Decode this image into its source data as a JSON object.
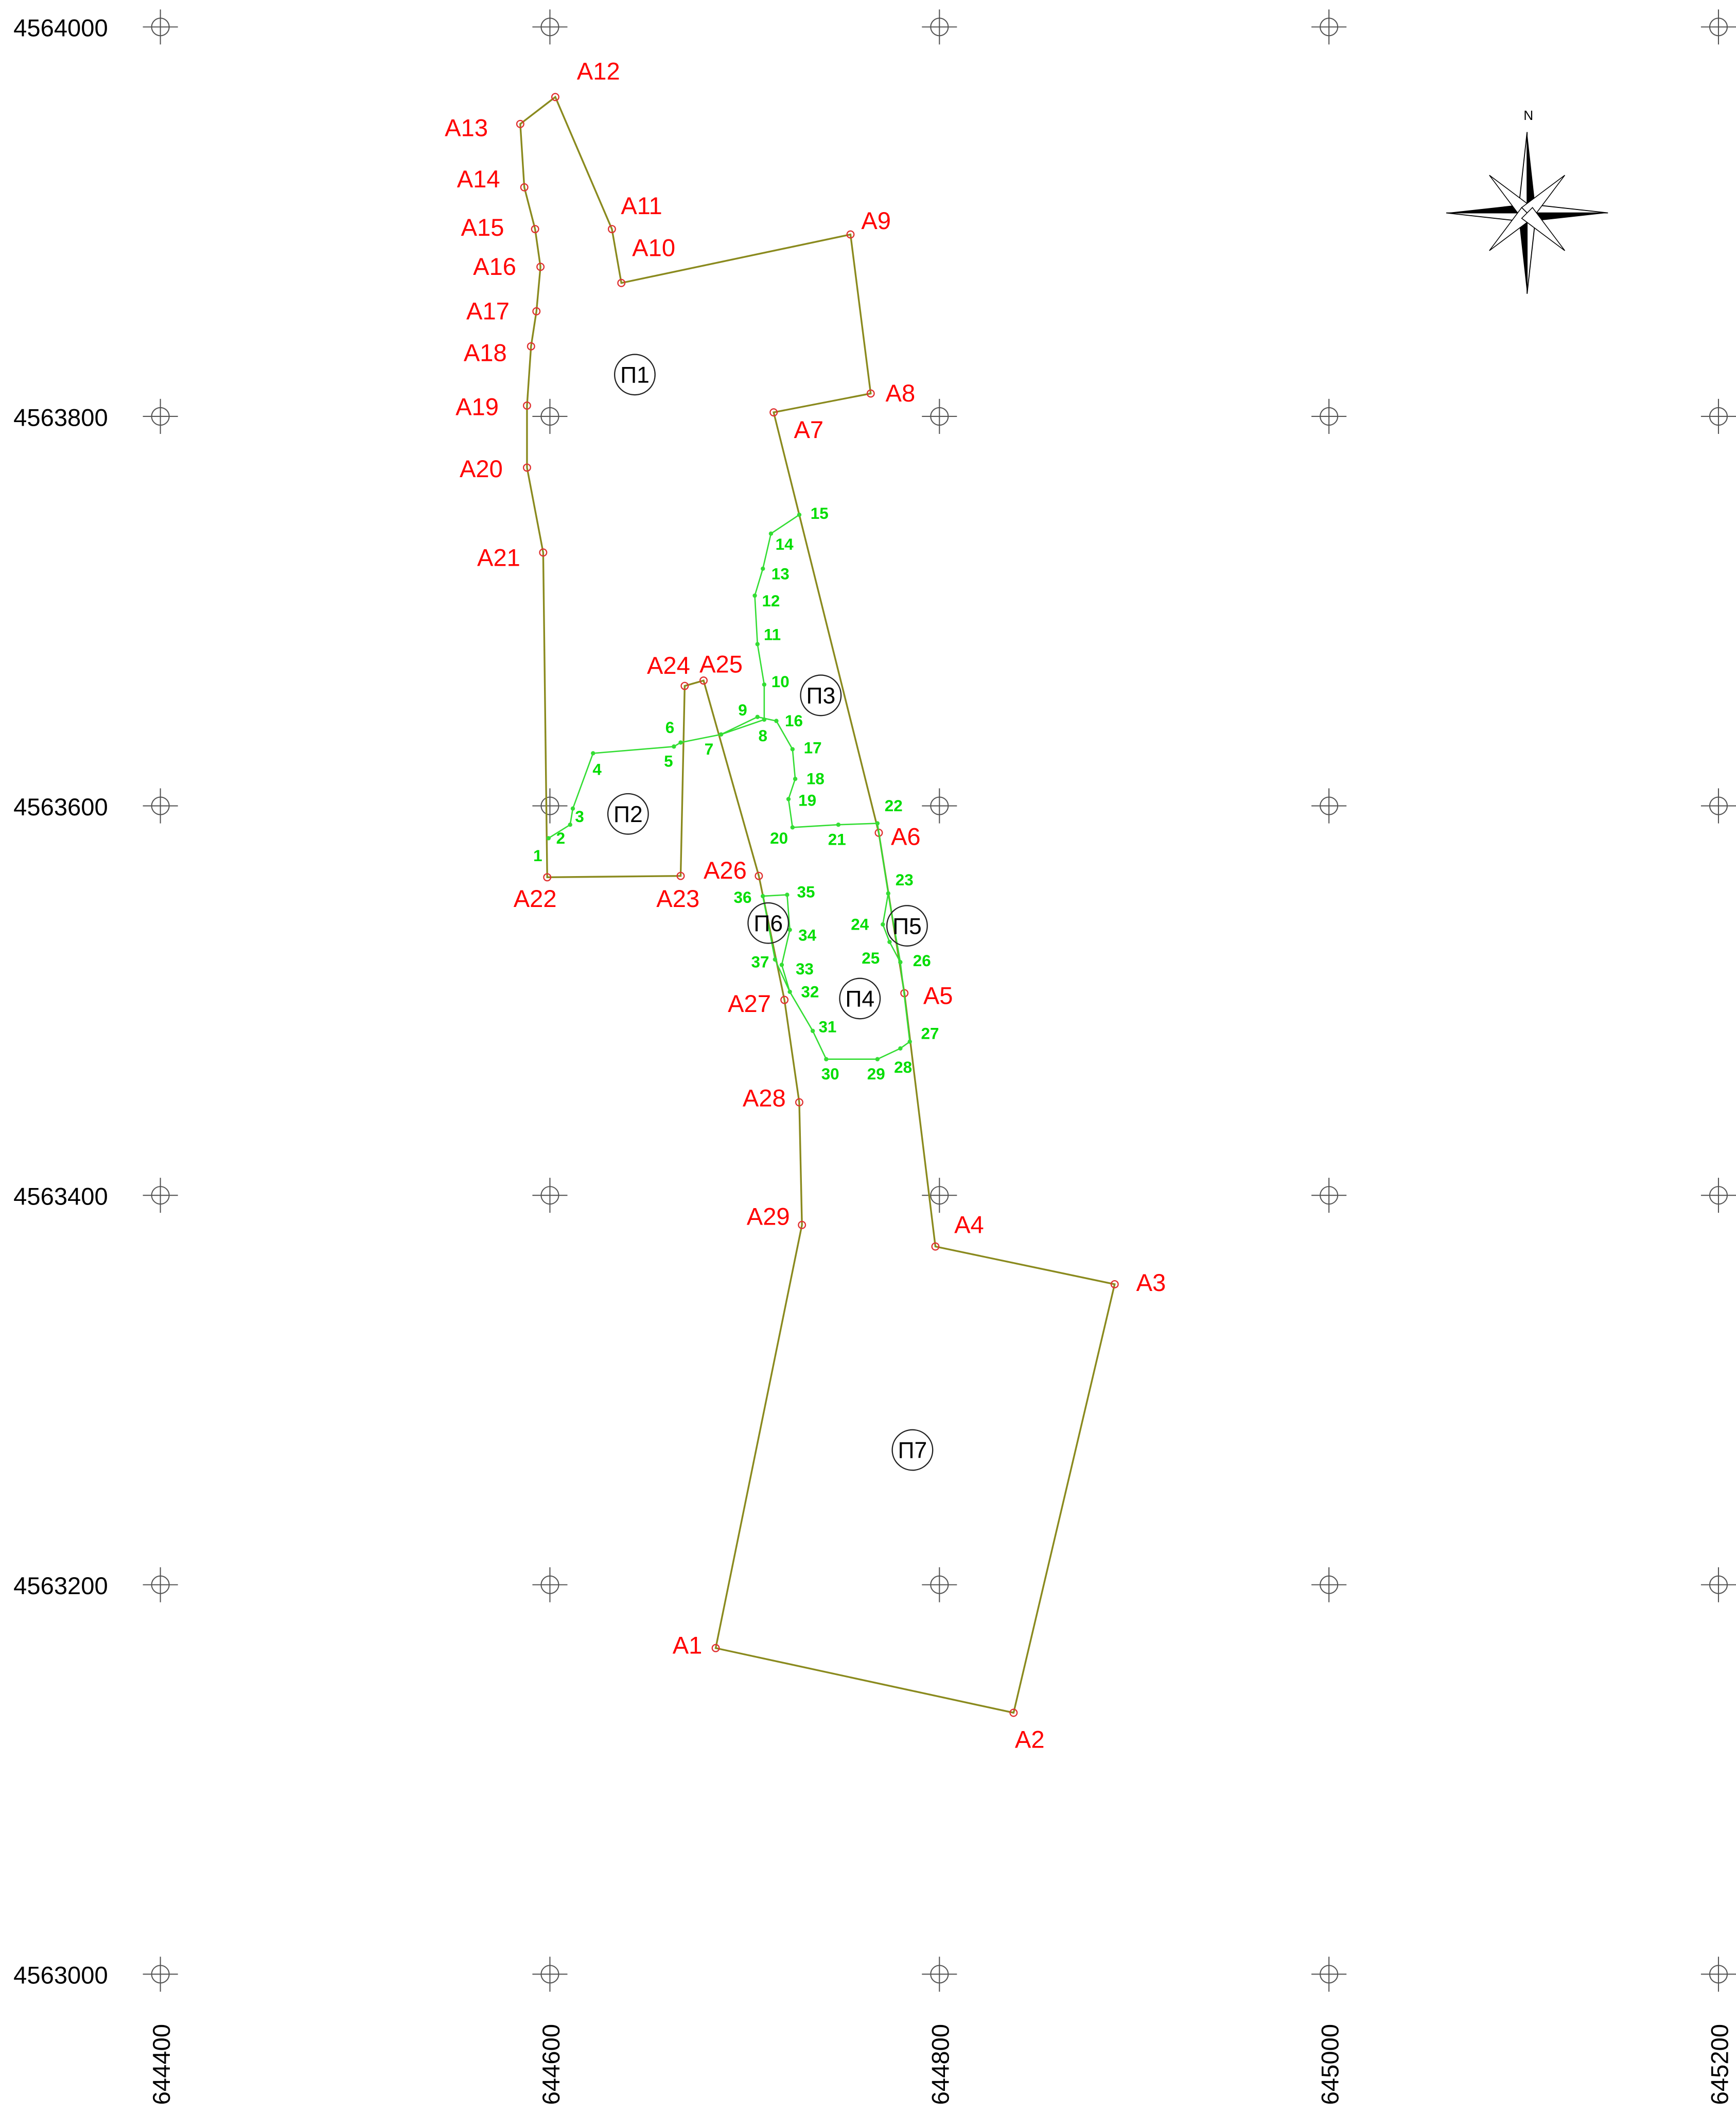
{
  "map": {
    "x_ticks": [
      644400,
      644600,
      644800,
      645000,
      645200
    ],
    "y_ticks": [
      4564000,
      4563800,
      4563600,
      4563400,
      4563200,
      4563000
    ],
    "north_label": "N",
    "boundary_points": [
      "A1",
      "A2",
      "A3",
      "A4",
      "A5",
      "A6",
      "A7",
      "A8",
      "A9",
      "A10",
      "A11",
      "A12",
      "A13",
      "A14",
      "A15",
      "A16",
      "A17",
      "A18",
      "A19",
      "A20",
      "A21",
      "A22",
      "A23",
      "A24",
      "A25",
      "A26",
      "A27",
      "A28",
      "A29"
    ],
    "parcel_points": [
      "1",
      "2",
      "3",
      "4",
      "5",
      "6",
      "7",
      "8",
      "9",
      "10",
      "11",
      "12",
      "13",
      "14",
      "15",
      "16",
      "17",
      "18",
      "19",
      "20",
      "21",
      "22",
      "23",
      "24",
      "25",
      "26",
      "27",
      "28",
      "29",
      "30",
      "31",
      "32",
      "33",
      "34",
      "35",
      "36",
      "37"
    ],
    "parcels": [
      "П1",
      "П2",
      "П3",
      "П4",
      "П5",
      "П6",
      "П7"
    ]
  }
}
